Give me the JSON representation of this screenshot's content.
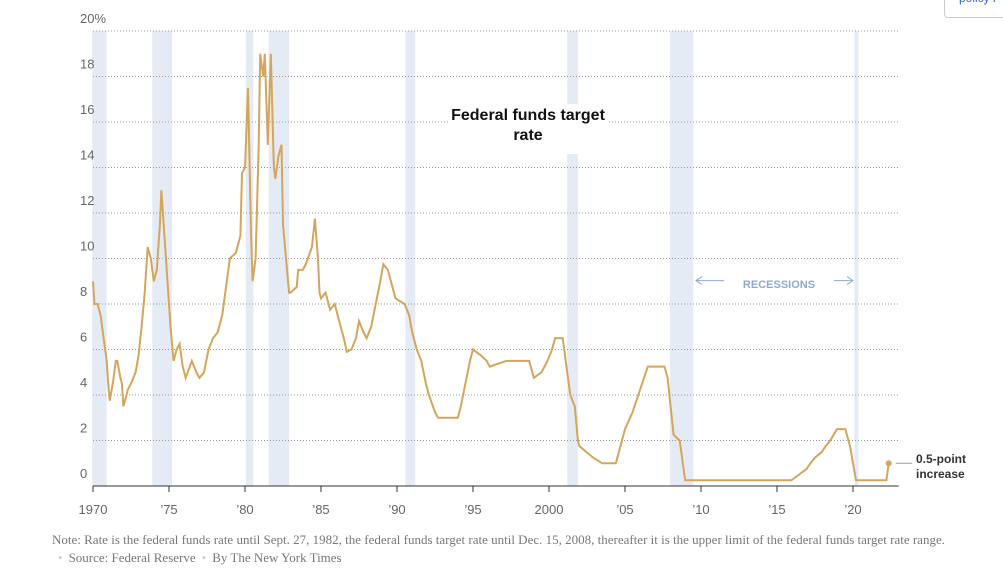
{
  "chart_data": {
    "type": "line",
    "title": "Federal funds target rate",
    "top_link": "policy r",
    "annotation": "0.5-point increase",
    "recession_label": "RECESSIONS",
    "note": "Note: Rate is the federal funds rate until Sept. 27, 1982, the federal funds target rate until Dec. 15, 2008, thereafter it is the upper limit of the federal funds target rate range.",
    "source": "Source: Federal Reserve",
    "credit": "By The New York Times",
    "color": "#d4a55c",
    "recession_color": "#e4ebf4",
    "grid": true,
    "xlim": [
      1970,
      2023
    ],
    "ylim": [
      0,
      20
    ],
    "xticks": [
      1970,
      {
        "value": 1975,
        "label": "’75"
      },
      {
        "value": 1980,
        "label": "’80"
      },
      {
        "value": 1985,
        "label": "’85"
      },
      {
        "value": 1990,
        "label": "’90"
      },
      {
        "value": 1995,
        "label": "’95"
      },
      2000,
      {
        "value": 2005,
        "label": "’05"
      },
      {
        "value": 2010,
        "label": "’10"
      },
      {
        "value": 2015,
        "label": "’15"
      },
      {
        "value": 2020,
        "label": "’20"
      }
    ],
    "yticks": [
      0,
      2,
      4,
      6,
      8,
      10,
      12,
      14,
      16,
      18,
      {
        "value": 20,
        "label": "20%"
      }
    ],
    "recessions": [
      {
        "start": 1969.95,
        "end": 1970.9
      },
      {
        "start": 1973.9,
        "end": 1975.2
      },
      {
        "start": 1980.05,
        "end": 1980.55
      },
      {
        "start": 1981.55,
        "end": 1982.9
      },
      {
        "start": 1990.55,
        "end": 1991.2
      },
      {
        "start": 2001.2,
        "end": 2001.9
      },
      {
        "start": 2007.95,
        "end": 2009.5
      },
      {
        "start": 2020.1,
        "end": 2020.35
      }
    ],
    "series": [
      {
        "name": "Federal funds target rate",
        "x": [
          1970.0,
          1970.1,
          1970.3,
          1970.5,
          1970.7,
          1970.9,
          1971.0,
          1971.1,
          1971.3,
          1971.5,
          1971.6,
          1971.8,
          1971.9,
          1972.0,
          1972.1,
          1972.3,
          1972.5,
          1972.8,
          1973.0,
          1973.2,
          1973.4,
          1973.6,
          1973.8,
          1974.0,
          1974.2,
          1974.4,
          1974.5,
          1974.7,
          1974.9,
          1975.1,
          1975.3,
          1975.5,
          1975.7,
          1975.9,
          1976.1,
          1976.5,
          1976.8,
          1977.0,
          1977.3,
          1977.6,
          1977.9,
          1978.2,
          1978.5,
          1978.8,
          1979.0,
          1979.4,
          1979.7,
          1979.8,
          1980.0,
          1980.2,
          1980.4,
          1980.5,
          1980.7,
          1980.9,
          1981.0,
          1981.2,
          1981.3,
          1981.5,
          1981.7,
          1981.9,
          1982.0,
          1982.2,
          1982.4,
          1982.5,
          1982.7,
          1982.9,
          1983.0,
          1983.4,
          1983.5,
          1983.8,
          1984.0,
          1984.4,
          1984.6,
          1984.8,
          1984.9,
          1985.0,
          1985.3,
          1985.6,
          1985.9,
          1986.2,
          1986.5,
          1986.7,
          1987.0,
          1987.3,
          1987.5,
          1987.8,
          1988.0,
          1988.3,
          1988.6,
          1988.9,
          1989.1,
          1989.4,
          1989.6,
          1989.9,
          1990.5,
          1990.8,
          1991.0,
          1991.3,
          1991.6,
          1991.9,
          1992.1,
          1992.5,
          1992.7,
          1993.0,
          1994.0,
          1994.2,
          1994.5,
          1994.8,
          1995.0,
          1995.5,
          1995.9,
          1996.1,
          1997.2,
          1998.7,
          1998.9,
          1999.0,
          1999.5,
          1999.9,
          2000.2,
          2000.4,
          2000.9,
          2001.0,
          2001.2,
          2001.4,
          2001.7,
          2001.9,
          2002.0,
          2002.9,
          2003.5,
          2004.4,
          2004.6,
          2005.0,
          2005.5,
          2006.0,
          2006.5,
          2007.6,
          2007.8,
          2008.0,
          2008.2,
          2008.6,
          2008.8,
          2008.96,
          2015.95,
          2016.95,
          2017.2,
          2017.5,
          2017.95,
          2018.2,
          2018.5,
          2018.95,
          2019.5,
          2019.6,
          2019.8,
          2020.2,
          2022.2,
          2022.25,
          2022.35
        ],
        "values": [
          9.0,
          8.0,
          8.0,
          7.5,
          6.5,
          5.5,
          4.5,
          3.75,
          4.5,
          5.5,
          5.5,
          4.75,
          4.5,
          3.5,
          3.75,
          4.25,
          4.5,
          5.0,
          5.75,
          7.0,
          8.5,
          10.5,
          10.0,
          9.0,
          9.5,
          11.5,
          13.0,
          11.0,
          9.0,
          7.0,
          5.5,
          6.0,
          6.25,
          5.25,
          4.75,
          5.5,
          5.0,
          4.75,
          5.0,
          6.0,
          6.5,
          6.75,
          7.5,
          9.0,
          10.0,
          10.25,
          11.0,
          13.75,
          14.0,
          17.5,
          11.0,
          9.0,
          10.0,
          15.0,
          19.0,
          18.0,
          19.0,
          15.0,
          19.0,
          14.0,
          13.5,
          14.5,
          15.0,
          11.5,
          10.0,
          8.5,
          8.5,
          8.75,
          9.5,
          9.5,
          9.75,
          10.5,
          11.75,
          10.0,
          8.5,
          8.25,
          8.5,
          7.75,
          8.0,
          7.25,
          6.5,
          5.9,
          6.0,
          6.5,
          7.25,
          6.75,
          6.5,
          7.0,
          8.0,
          9.0,
          9.75,
          9.5,
          9.0,
          8.25,
          8.0,
          7.5,
          6.75,
          6.0,
          5.5,
          4.5,
          4.0,
          3.25,
          3.0,
          3.0,
          3.0,
          3.5,
          4.5,
          5.5,
          6.0,
          5.75,
          5.5,
          5.25,
          5.5,
          5.5,
          5.0,
          4.75,
          5.0,
          5.5,
          6.0,
          6.5,
          6.5,
          6.0,
          5.0,
          4.0,
          3.5,
          2.0,
          1.75,
          1.25,
          1.0,
          1.0,
          1.5,
          2.5,
          3.25,
          4.25,
          5.25,
          5.25,
          4.75,
          3.5,
          2.25,
          2.0,
          1.0,
          0.25,
          0.25,
          0.75,
          1.0,
          1.25,
          1.5,
          1.75,
          2.0,
          2.5,
          2.5,
          2.25,
          1.75,
          0.25,
          0.25,
          0.5,
          1.0
        ]
      }
    ]
  }
}
